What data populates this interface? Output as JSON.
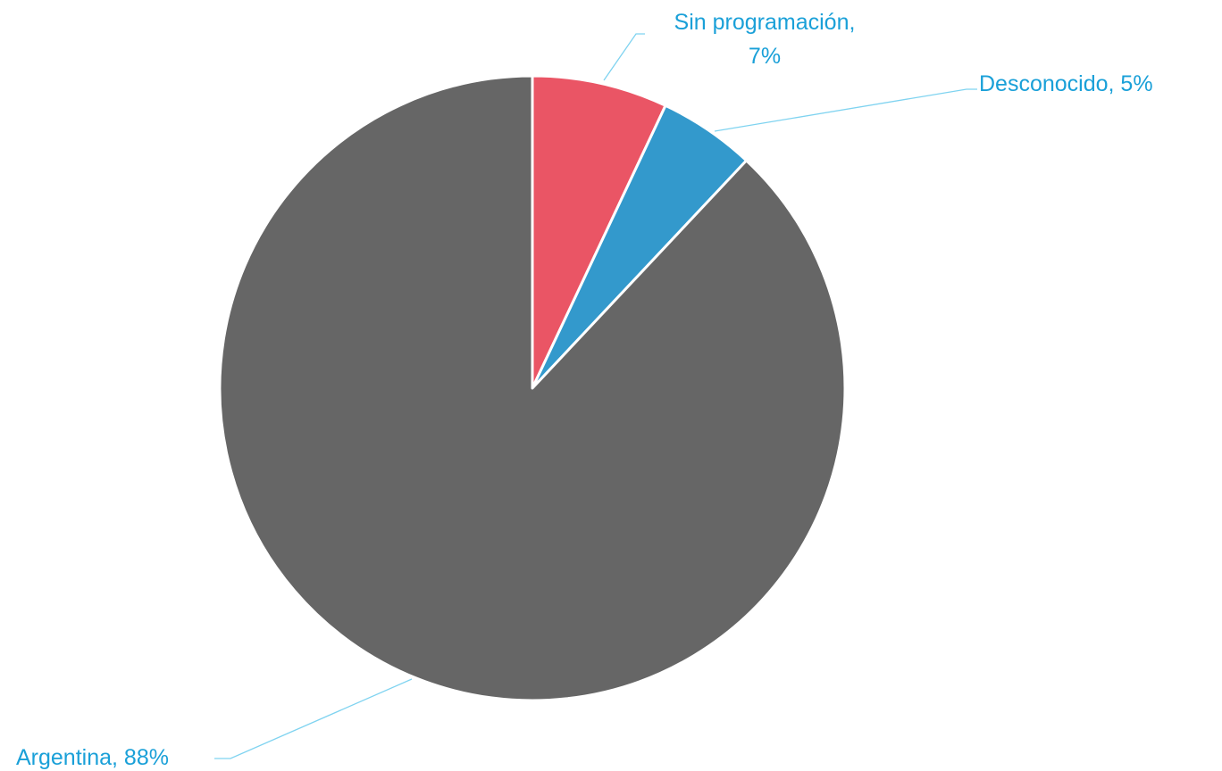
{
  "chart_data": {
    "type": "pie",
    "title": "",
    "slices": [
      {
        "label": "Sin programación",
        "value": 7,
        "display": "7%",
        "color": "#ea5565"
      },
      {
        "label": "Desconocido",
        "value": 5,
        "display": "5%",
        "color": "#3399cc"
      },
      {
        "label": "Argentina",
        "value": 88,
        "display": "88%",
        "color": "#666666"
      }
    ],
    "start_angle_deg": 0,
    "direction": "clockwise",
    "legend": "none",
    "data_labels": "outside with leader lines",
    "label_color": "#1aa0d8",
    "leader_color": "#7fd3f0"
  }
}
